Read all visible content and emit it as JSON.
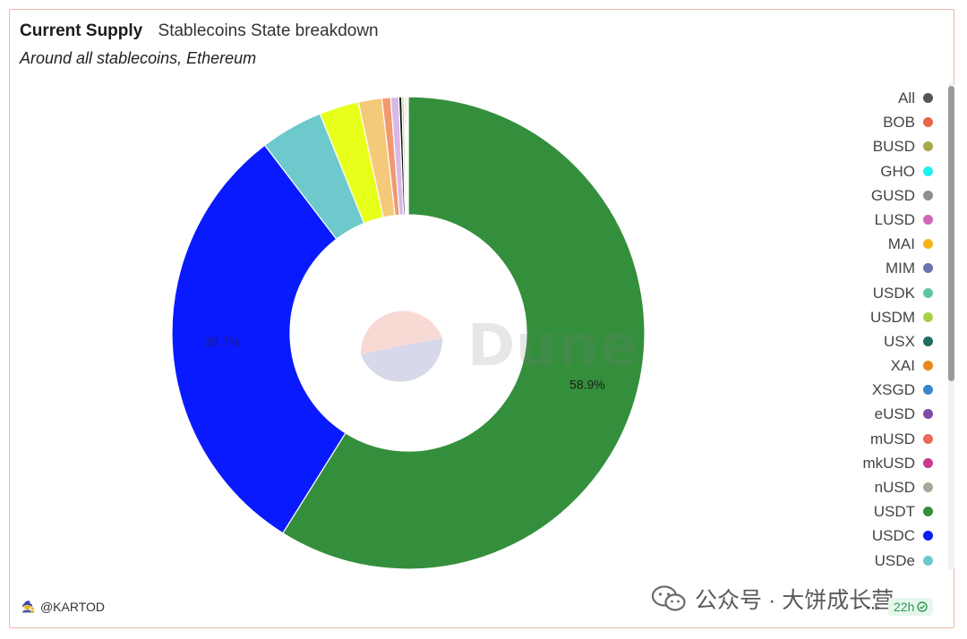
{
  "header": {
    "title": "Current Supply",
    "query_name": "Stablecoins State breakdown",
    "subtitle": "Around all stablecoins, Ethereum"
  },
  "chart_data": {
    "type": "pie",
    "donut": true,
    "title": "Current Supply",
    "legend_position": "right",
    "slices": [
      {
        "label": "USDT",
        "value": 58.9,
        "color": "#348f3c",
        "data_label": "58.9%"
      },
      {
        "label": "USDC",
        "value": 30.7,
        "color": "#0a1aff",
        "data_label": "30.7%"
      },
      {
        "label": "USDe",
        "value": 4.3,
        "color": "#6ec9cc",
        "data_label": ""
      },
      {
        "label": "",
        "value": 2.7,
        "color": "#e8ff1a",
        "data_label": ""
      },
      {
        "label": "",
        "value": 1.6,
        "color": "#f5c97a",
        "data_label": ""
      },
      {
        "label": "",
        "value": 0.6,
        "color": "#f09a72",
        "data_label": ""
      },
      {
        "label": "",
        "value": 0.55,
        "color": "#d9b8e8",
        "data_label": ""
      },
      {
        "label": "",
        "value": 0.2,
        "color": "#111111",
        "data_label": ""
      },
      {
        "label": "",
        "value": 0.15,
        "color": "#a3d977",
        "data_label": ""
      },
      {
        "label": "",
        "value": 0.1,
        "color": "#b8d4f0",
        "data_label": ""
      },
      {
        "label": "",
        "value": 0.1,
        "color": "#f4b3c9",
        "data_label": ""
      },
      {
        "label": "",
        "value": 0.09,
        "color": "#c9c9a8",
        "data_label": ""
      }
    ]
  },
  "legend": {
    "items": [
      {
        "label": "All",
        "color": "#555555"
      },
      {
        "label": "BOB",
        "color": "#e8654a"
      },
      {
        "label": "BUSD",
        "color": "#a8a84a"
      },
      {
        "label": "GHO",
        "color": "#1ff0f0"
      },
      {
        "label": "GUSD",
        "color": "#8f8f8f"
      },
      {
        "label": "LUSD",
        "color": "#d266b8"
      },
      {
        "label": "MAI",
        "color": "#f5b41a"
      },
      {
        "label": "MIM",
        "color": "#6a72b0"
      },
      {
        "label": "USDK",
        "color": "#5ec4a8"
      },
      {
        "label": "USDM",
        "color": "#a8d14a"
      },
      {
        "label": "USX",
        "color": "#1f6e60"
      },
      {
        "label": "XAI",
        "color": "#e8861a"
      },
      {
        "label": "XSGD",
        "color": "#3a86c8"
      },
      {
        "label": "eUSD",
        "color": "#7e4aa8"
      },
      {
        "label": "mUSD",
        "color": "#e86a5a"
      },
      {
        "label": "mkUSD",
        "color": "#c83a8a"
      },
      {
        "label": "nUSD",
        "color": "#a8a898"
      },
      {
        "label": "USDT",
        "color": "#348f3c"
      },
      {
        "label": "USDC",
        "color": "#0a1aff"
      },
      {
        "label": "USDe",
        "color": "#6ec9cc"
      }
    ]
  },
  "footer": {
    "author": "@KARTOD",
    "watermark": "Dune",
    "wechat_text": "公众号 · 大饼成长营",
    "more": "···",
    "refresh": "22h"
  },
  "icons": {
    "author": "wizard-icon",
    "refresh": "check-circle-icon",
    "wechat": "wechat-icon",
    "watermark": "dune-logo-icon"
  }
}
